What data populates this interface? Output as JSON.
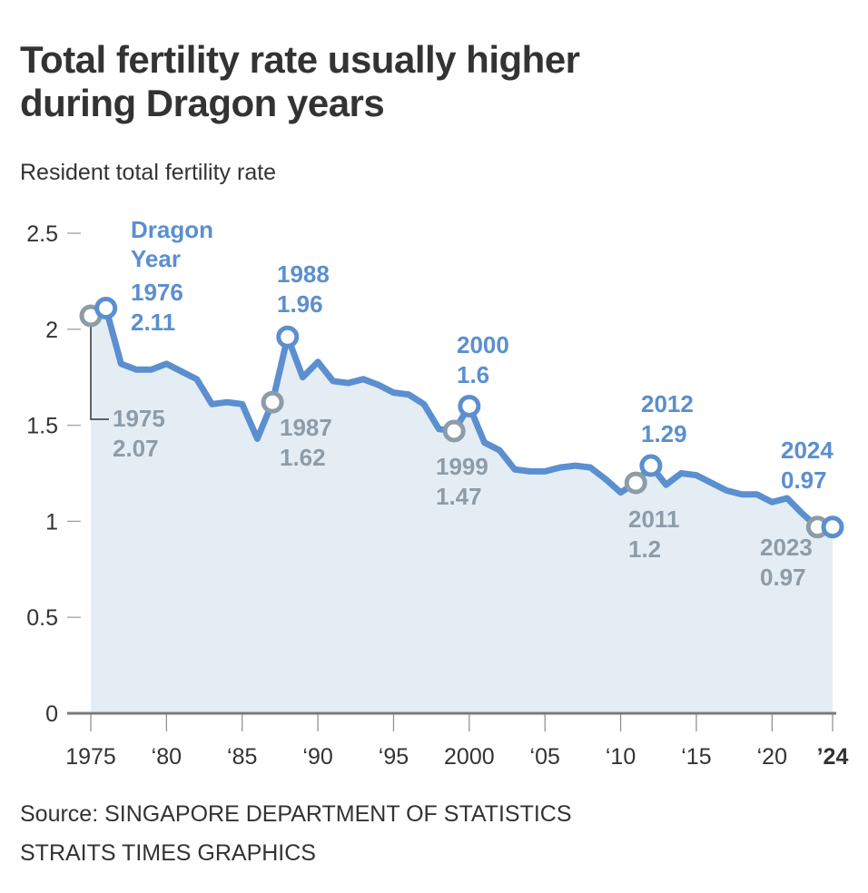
{
  "header": {
    "title_line1": "Total fertility rate usually higher",
    "title_line2": "during Dragon years",
    "subtitle": "Resident total fertility rate"
  },
  "footer": {
    "source": "Source: SINGAPORE DEPARTMENT OF STATISTICS",
    "credit": "STRAITS TIMES GRAPHICS"
  },
  "colors": {
    "line": "#5b8fcf",
    "dragon": "#5b8fcf",
    "pre_dragon": "#8c9ca8",
    "fill": "#e5edf4",
    "axis": "#7a7a7a",
    "text": "#333333"
  },
  "chart_data": {
    "type": "area",
    "title": "Total fertility rate usually higher during Dragon years",
    "subtitle": "Resident total fertility rate",
    "xlabel": "",
    "ylabel": "Resident total fertility rate",
    "xlim": [
      1975,
      2024
    ],
    "ylim": [
      0,
      2.5
    ],
    "grid": false,
    "y_ticks": [
      {
        "value": 0,
        "label": "0"
      },
      {
        "value": 0.5,
        "label": "0.5"
      },
      {
        "value": 1,
        "label": "1"
      },
      {
        "value": 1.5,
        "label": "1.5"
      },
      {
        "value": 2,
        "label": "2"
      },
      {
        "value": 2.5,
        "label": "2.5"
      }
    ],
    "x_ticks": [
      {
        "value": 1975,
        "label": "1975"
      },
      {
        "value": 1980,
        "label": "‘80"
      },
      {
        "value": 1985,
        "label": "‘85"
      },
      {
        "value": 1990,
        "label": "‘90"
      },
      {
        "value": 1995,
        "label": "‘95"
      },
      {
        "value": 2000,
        "label": "2000"
      },
      {
        "value": 2005,
        "label": "‘05"
      },
      {
        "value": 2010,
        "label": "‘10"
      },
      {
        "value": 2015,
        "label": "‘15"
      },
      {
        "value": 2020,
        "label": "‘20"
      },
      {
        "value": 2024,
        "label": "’24",
        "bold": true
      }
    ],
    "series": [
      {
        "name": "Resident total fertility rate",
        "x": [
          1975,
          1976,
          1977,
          1978,
          1979,
          1980,
          1981,
          1982,
          1983,
          1984,
          1985,
          1986,
          1987,
          1988,
          1989,
          1990,
          1991,
          1992,
          1993,
          1994,
          1995,
          1996,
          1997,
          1998,
          1999,
          2000,
          2001,
          2002,
          2003,
          2004,
          2005,
          2006,
          2007,
          2008,
          2009,
          2010,
          2011,
          2012,
          2013,
          2014,
          2015,
          2016,
          2017,
          2018,
          2019,
          2020,
          2021,
          2022,
          2023,
          2024
        ],
        "values": [
          2.07,
          2.11,
          1.82,
          1.79,
          1.79,
          1.82,
          1.78,
          1.74,
          1.61,
          1.62,
          1.61,
          1.43,
          1.62,
          1.96,
          1.75,
          1.83,
          1.73,
          1.72,
          1.74,
          1.71,
          1.67,
          1.66,
          1.61,
          1.48,
          1.47,
          1.6,
          1.41,
          1.37,
          1.27,
          1.26,
          1.26,
          1.28,
          1.29,
          1.28,
          1.22,
          1.15,
          1.2,
          1.29,
          1.19,
          1.25,
          1.24,
          1.2,
          1.16,
          1.14,
          1.14,
          1.1,
          1.12,
          1.04,
          0.97,
          0.97
        ]
      }
    ],
    "annotations": [
      {
        "kind": "header",
        "text_line1": "Dragon",
        "text_line2": "Year",
        "type": "dragon"
      },
      {
        "year": 1975,
        "value": 2.07,
        "year_label": "1975",
        "value_label": "2.07",
        "type": "pre_dragon"
      },
      {
        "year": 1976,
        "value": 2.11,
        "year_label": "1976",
        "value_label": "2.11",
        "type": "dragon"
      },
      {
        "year": 1987,
        "value": 1.62,
        "year_label": "1987",
        "value_label": "1.62",
        "type": "pre_dragon"
      },
      {
        "year": 1988,
        "value": 1.96,
        "year_label": "1988",
        "value_label": "1.96",
        "type": "dragon"
      },
      {
        "year": 1999,
        "value": 1.47,
        "year_label": "1999",
        "value_label": "1.47",
        "type": "pre_dragon"
      },
      {
        "year": 2000,
        "value": 1.6,
        "year_label": "2000",
        "value_label": "1.6",
        "type": "dragon"
      },
      {
        "year": 2011,
        "value": 1.2,
        "year_label": "2011",
        "value_label": "1.2",
        "type": "pre_dragon"
      },
      {
        "year": 2012,
        "value": 1.29,
        "year_label": "2012",
        "value_label": "1.29",
        "type": "dragon"
      },
      {
        "year": 2023,
        "value": 0.97,
        "year_label": "2023",
        "value_label": "0.97",
        "type": "pre_dragon"
      },
      {
        "year": 2024,
        "value": 0.97,
        "year_label": "2024",
        "value_label": "0.97",
        "type": "dragon"
      }
    ]
  }
}
